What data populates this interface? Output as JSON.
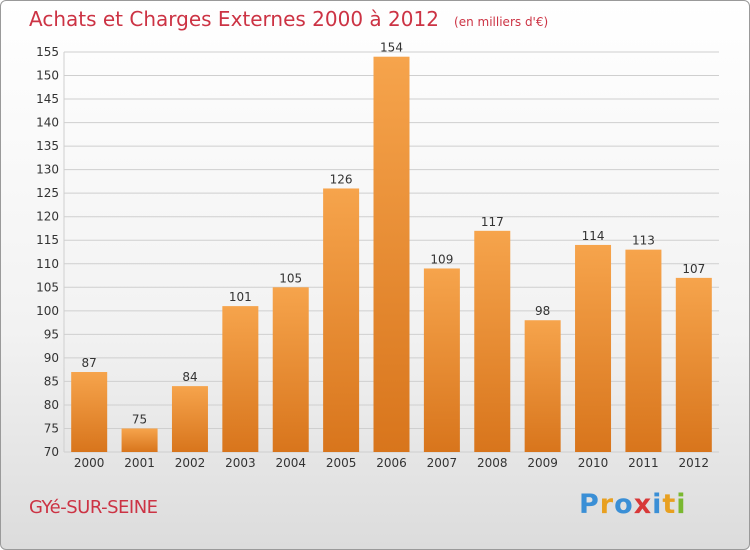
{
  "title": "Achats et Charges Externes 2000 à 2012",
  "subtitle": "(en milliers d'€)",
  "place": "GYé-SUR-SEINE",
  "logo": {
    "text": "Proxiti",
    "letters": [
      {
        "ch": "P",
        "color": "#3a8fd6"
      },
      {
        "ch": "r",
        "color": "#e8a020"
      },
      {
        "ch": "o",
        "color": "#3a8fd6"
      },
      {
        "ch": "x",
        "color": "#d83838"
      },
      {
        "ch": "i",
        "color": "#3a8fd6"
      },
      {
        "ch": "t",
        "color": "#e8a020"
      },
      {
        "ch": "i",
        "color": "#7ab830"
      }
    ]
  },
  "colors": {
    "bar_light": "#f6a44c",
    "bar_dark": "#d8751c",
    "grid": "#cfcfcf",
    "axis_text": "#333333",
    "title": "#cc3344"
  },
  "chart_data": {
    "type": "bar",
    "categories": [
      "2000",
      "2001",
      "2002",
      "2003",
      "2004",
      "2005",
      "2006",
      "2007",
      "2008",
      "2009",
      "2010",
      "2011",
      "2012"
    ],
    "values": [
      87,
      75,
      84,
      101,
      105,
      126,
      154,
      109,
      117,
      98,
      114,
      113,
      107
    ],
    "ylim": [
      70,
      155
    ],
    "yticks": [
      70,
      75,
      80,
      85,
      90,
      95,
      100,
      105,
      110,
      115,
      120,
      125,
      130,
      135,
      140,
      145,
      150,
      155
    ],
    "grid": true,
    "data_labels": true
  }
}
